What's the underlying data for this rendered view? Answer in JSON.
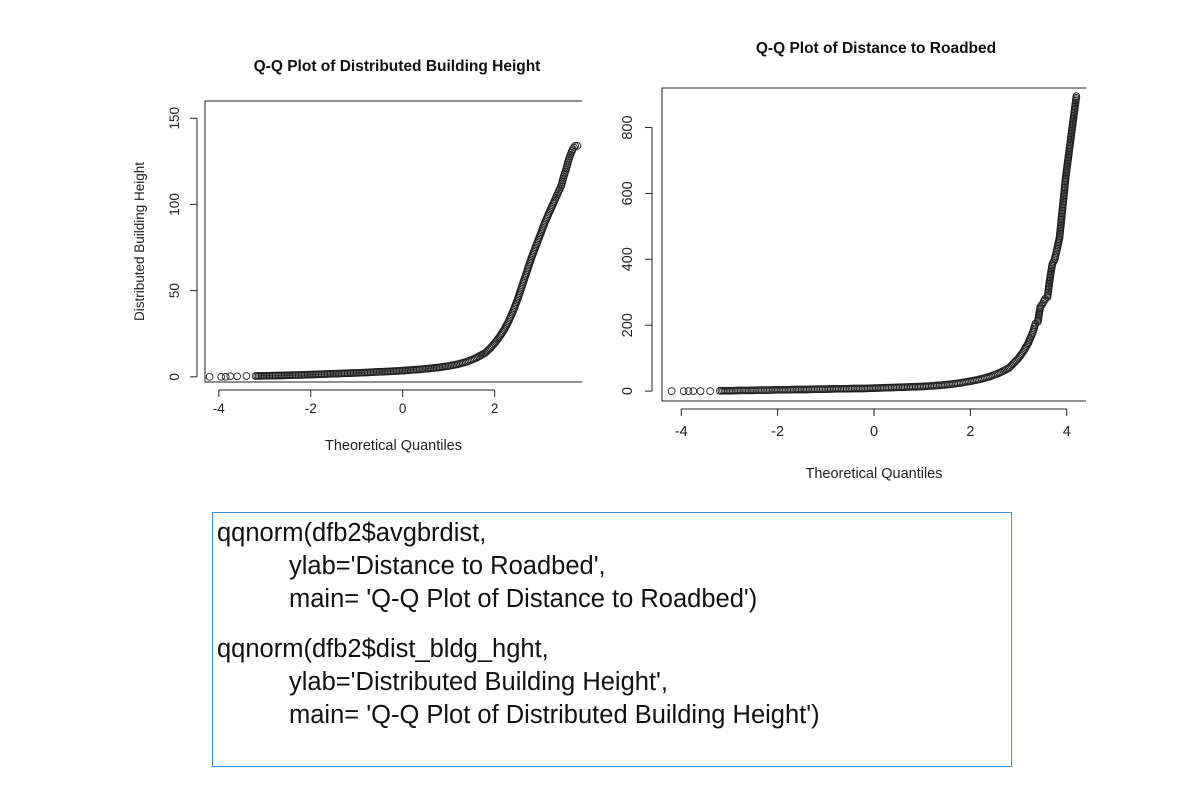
{
  "chart_data": [
    {
      "type": "scatter",
      "title": "Q-Q Plot of Distributed Building Height",
      "xlabel": "Theoretical Quantiles",
      "ylabel": "Distributed Building Height",
      "xlim": [
        -4.3,
        3.9
      ],
      "ylim": [
        -3,
        160
      ],
      "x_ticks": [
        "-4",
        "-2",
        "0",
        "2"
      ],
      "x_tick_values": [
        -4,
        -2,
        0,
        2
      ],
      "y_ticks": [
        "0",
        "50",
        "100",
        "150"
      ],
      "y_tick_values": [
        0,
        50,
        100,
        150
      ],
      "points": [
        [
          -4.2,
          0
        ],
        [
          -3.95,
          0
        ],
        [
          -3.85,
          0
        ],
        [
          -3.75,
          0.3
        ],
        [
          -3.6,
          0.3
        ],
        [
          -3.4,
          0.5
        ],
        [
          -3.2,
          0.5
        ],
        [
          -3.0,
          0.6
        ],
        [
          -2.8,
          0.7
        ],
        [
          -2.6,
          0.8
        ],
        [
          -2.4,
          1
        ],
        [
          -2.2,
          1.1
        ],
        [
          -2.0,
          1.3
        ],
        [
          -1.8,
          1.5
        ],
        [
          -1.6,
          1.7
        ],
        [
          -1.4,
          1.9
        ],
        [
          -1.2,
          2.1
        ],
        [
          -1.0,
          2.3
        ],
        [
          -0.8,
          2.5
        ],
        [
          -0.6,
          2.8
        ],
        [
          -0.4,
          3
        ],
        [
          -0.2,
          3.3
        ],
        [
          0,
          3.6
        ],
        [
          0.2,
          4
        ],
        [
          0.4,
          4.4
        ],
        [
          0.6,
          4.9
        ],
        [
          0.8,
          5.5
        ],
        [
          1.0,
          6.3
        ],
        [
          1.2,
          7.3
        ],
        [
          1.4,
          8.8
        ],
        [
          1.6,
          11
        ],
        [
          1.8,
          14
        ],
        [
          1.9,
          16.5
        ],
        [
          2.0,
          19.5
        ],
        [
          2.1,
          23
        ],
        [
          2.2,
          27
        ],
        [
          2.3,
          32
        ],
        [
          2.4,
          38
        ],
        [
          2.5,
          45
        ],
        [
          2.6,
          53
        ],
        [
          2.7,
          61
        ],
        [
          2.8,
          69
        ],
        [
          2.9,
          76
        ],
        [
          3.0,
          83
        ],
        [
          3.1,
          90
        ],
        [
          3.2,
          96
        ],
        [
          3.3,
          102
        ],
        [
          3.35,
          105
        ],
        [
          3.4,
          108
        ],
        [
          3.45,
          111
        ],
        [
          3.5,
          116
        ],
        [
          3.55,
          120
        ],
        [
          3.6,
          125
        ],
        [
          3.65,
          129
        ],
        [
          3.7,
          132
        ],
        [
          3.75,
          134
        ],
        [
          3.8,
          134
        ]
      ]
    },
    {
      "type": "scatter",
      "title": "Q-Q Plot of Distance to Roadbed",
      "xlabel": "Theoretical Quantiles",
      "ylabel": "",
      "xlim": [
        -4.4,
        4.4
      ],
      "ylim": [
        -30,
        920
      ],
      "x_ticks": [
        "-4",
        "-2",
        "0",
        "2",
        "4"
      ],
      "x_tick_values": [
        -4,
        -2,
        0,
        2,
        4
      ],
      "y_ticks": [
        "0",
        "200",
        "400",
        "600",
        "800"
      ],
      "y_tick_values": [
        0,
        200,
        400,
        600,
        800
      ],
      "points": [
        [
          -4.2,
          0
        ],
        [
          -3.95,
          0
        ],
        [
          -3.85,
          0
        ],
        [
          -3.75,
          0
        ],
        [
          -3.6,
          0
        ],
        [
          -3.4,
          0
        ],
        [
          -3.2,
          1
        ],
        [
          -3.0,
          1
        ],
        [
          -2.8,
          2
        ],
        [
          -2.6,
          2
        ],
        [
          -2.4,
          3
        ],
        [
          -2.2,
          3
        ],
        [
          -2.0,
          4
        ],
        [
          -1.8,
          4
        ],
        [
          -1.6,
          5
        ],
        [
          -1.4,
          5
        ],
        [
          -1.2,
          6
        ],
        [
          -1.0,
          6
        ],
        [
          -0.8,
          7
        ],
        [
          -0.6,
          7
        ],
        [
          -0.4,
          8
        ],
        [
          -0.2,
          8
        ],
        [
          0,
          9
        ],
        [
          0.2,
          10
        ],
        [
          0.4,
          11
        ],
        [
          0.6,
          12
        ],
        [
          0.8,
          13
        ],
        [
          1.0,
          14
        ],
        [
          1.2,
          16
        ],
        [
          1.4,
          18
        ],
        [
          1.6,
          21
        ],
        [
          1.8,
          25
        ],
        [
          2.0,
          30
        ],
        [
          2.2,
          36
        ],
        [
          2.4,
          44
        ],
        [
          2.6,
          55
        ],
        [
          2.8,
          70
        ],
        [
          2.9,
          85
        ],
        [
          3.0,
          100
        ],
        [
          3.1,
          120
        ],
        [
          3.2,
          145
        ],
        [
          3.3,
          180
        ],
        [
          3.35,
          205
        ],
        [
          3.4,
          210
        ],
        [
          3.45,
          255
        ],
        [
          3.5,
          265
        ],
        [
          3.55,
          280
        ],
        [
          3.6,
          285
        ],
        [
          3.65,
          340
        ],
        [
          3.7,
          385
        ],
        [
          3.75,
          400
        ],
        [
          3.85,
          465
        ],
        [
          3.98,
          650
        ],
        [
          4.2,
          895
        ]
      ]
    }
  ],
  "code": {
    "lines": [
      "qqnorm(dfb2$avgbrdist,",
      "ylab='Distance to Roadbed',",
      "main= 'Q-Q Plot of Distance to Roadbed')",
      "qqnorm(dfb2$dist_bldg_hght,",
      "ylab='Distributed Building Height',",
      "main= 'Q-Q Plot of Distributed Building Height')"
    ]
  }
}
